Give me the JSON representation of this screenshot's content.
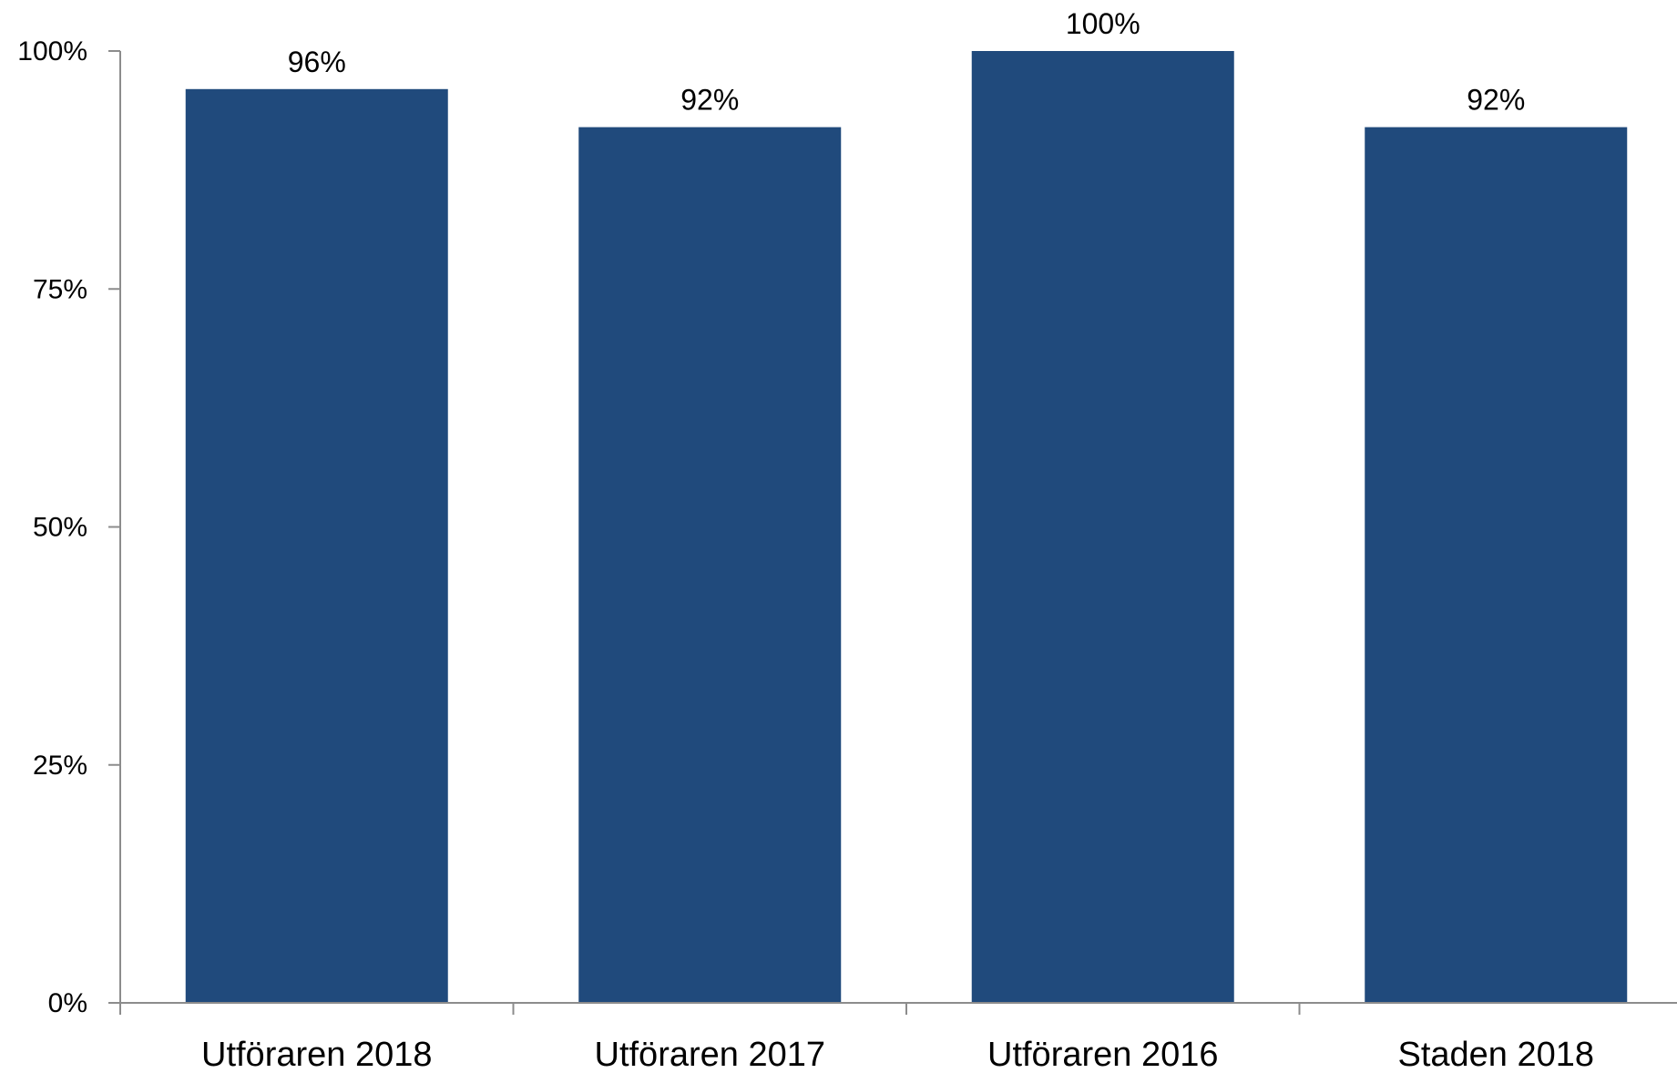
{
  "chart_data": {
    "type": "bar",
    "categories": [
      "Utföraren 2018",
      "Utföraren 2017",
      "Utföraren 2016",
      "Staden 2018"
    ],
    "values": [
      96,
      92,
      100,
      92
    ],
    "data_labels": [
      "96%",
      "92%",
      "100%",
      "92%"
    ],
    "title": "",
    "xlabel": "",
    "ylabel": "",
    "ylim": [
      0,
      100
    ],
    "y_ticks": [
      0,
      25,
      50,
      75,
      100
    ],
    "y_tick_labels": [
      "0%",
      "25%",
      "50%",
      "75%",
      "100%"
    ],
    "grid": false,
    "legend": "none",
    "bar_color": "#204a7c",
    "axis_color": "#8c8c8c"
  }
}
